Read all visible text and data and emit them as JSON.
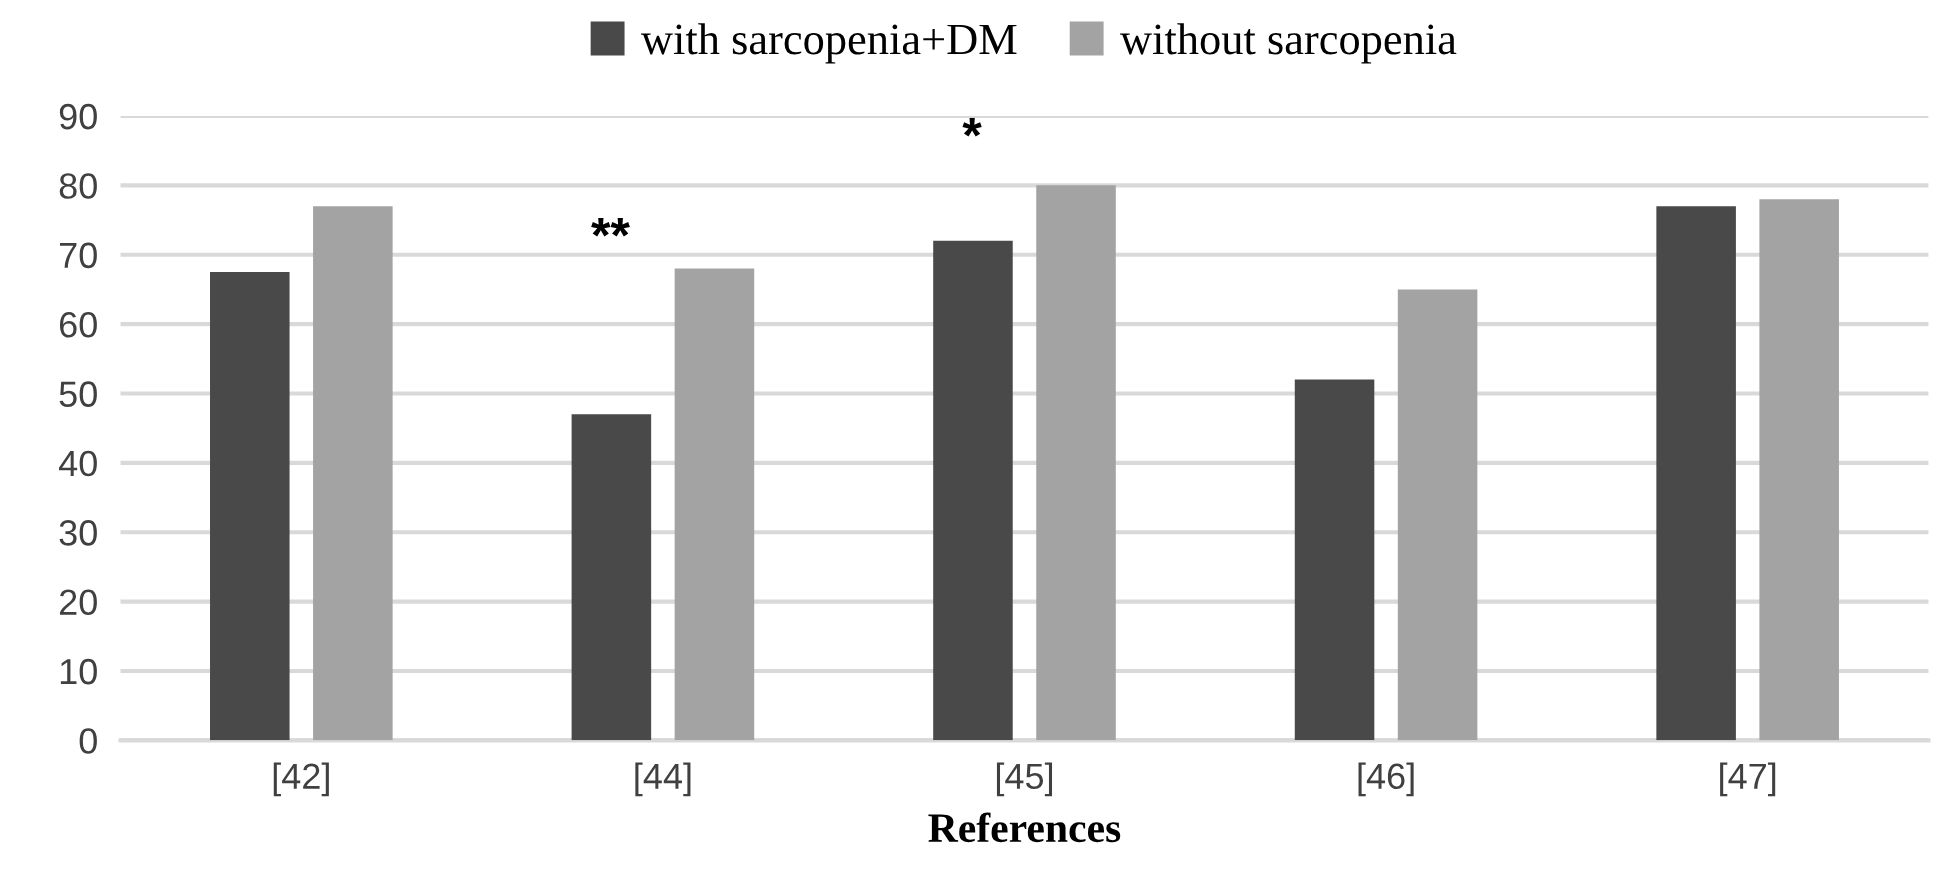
{
  "chart_data": {
    "type": "bar",
    "xlabel": "References",
    "categories": [
      "[42]",
      "[44]",
      "[45]",
      "[46]",
      "[47]"
    ],
    "series": [
      {
        "name": "with sarcopenia+DM",
        "color": "#494949",
        "values": [
          67.5,
          47,
          72,
          52,
          77
        ]
      },
      {
        "name": "without sarcopenia",
        "color": "#a3a3a3",
        "values": [
          77,
          68,
          80,
          65,
          78
        ]
      }
    ],
    "ylim": [
      0,
      90
    ],
    "yticks": [
      0,
      10,
      20,
      30,
      40,
      50,
      60,
      70,
      80,
      90
    ],
    "grid": "y",
    "legend": "top",
    "annotations": [
      "**",
      "*"
    ]
  }
}
